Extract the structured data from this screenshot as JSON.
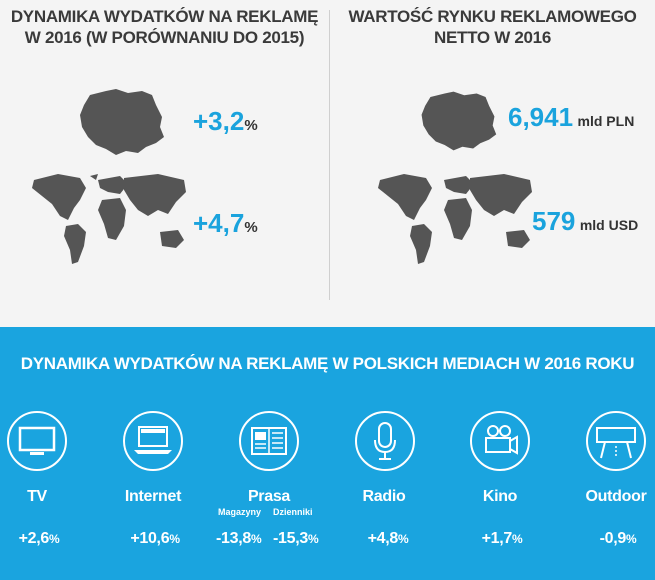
{
  "left_panel": {
    "title_line1": "DYNAMIKA WYDATKÓW NA REKLAMĘ",
    "title_line2": "W 2016 (W PORÓWNANIU DO 2015)",
    "poland_value": "+3,2",
    "world_value": "+4,7",
    "pct_sign": "%"
  },
  "right_panel": {
    "title_line1": "WARTOŚĆ RYNKU REKLAMOWEGO",
    "title_line2": "NETTO W 2016",
    "poland_value": "6,941",
    "poland_unit": "mld PLN",
    "world_value": "579",
    "world_unit": "mld USD"
  },
  "bottom": {
    "title": "DYNAMIKA WYDATKÓW NA REKLAMĘ W POLSKICH MEDIACH W 2016 ROKU",
    "media": [
      {
        "label": "TV",
        "value": "+2,6"
      },
      {
        "label": "Internet",
        "value": "+10,6"
      },
      {
        "label": "Prasa",
        "sub1": "Magazyny",
        "sub2": "Dzienniki",
        "value1": "-13,8",
        "value2": "-15,3"
      },
      {
        "label": "Radio",
        "value": "+4,8"
      },
      {
        "label": "Kino",
        "value": "+1,7"
      },
      {
        "label": "Outdoor",
        "value": "-0,9"
      }
    ],
    "pct_sign": "%"
  },
  "colors": {
    "accent": "#1aa4df",
    "map": "#555555",
    "text_dark": "#3a3a3a"
  }
}
